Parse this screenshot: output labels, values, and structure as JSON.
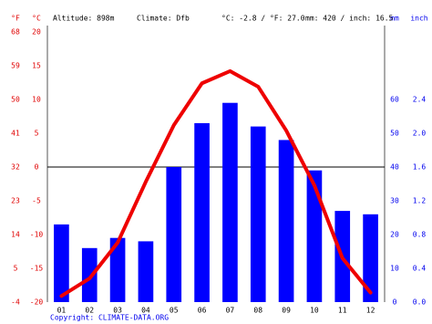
{
  "chart_data": {
    "type": "combo",
    "header": [
      "Altitude: 898m",
      "Climate: Dfb",
      "°C: -2.8 / °F: 27.0",
      "mm: 420 / inch: 16.5"
    ],
    "ylabel_f": "°F",
    "ylabel": "°C",
    "y2label": "mm",
    "y2label_inch": "inch",
    "categories": [
      "01",
      "02",
      "03",
      "04",
      "05",
      "06",
      "07",
      "08",
      "09",
      "10",
      "11",
      "12"
    ],
    "series": [
      {
        "name": "Precipitation",
        "type": "bar",
        "axis": "y2",
        "color": "#0000ff",
        "values": [
          23,
          16,
          19,
          18,
          40,
          53,
          59,
          52,
          48,
          39,
          27,
          26
        ]
      },
      {
        "name": "Temperature",
        "type": "line",
        "color": "#ee0000",
        "values": [
          -19.1,
          -16.5,
          -11.2,
          -2.2,
          6.2,
          12.4,
          14.2,
          11.9,
          5.4,
          -2.7,
          -13.5,
          -18.6
        ]
      }
    ],
    "ylim": [
      -20,
      20
    ],
    "yticks": [
      20,
      15,
      10,
      5,
      0,
      -5,
      -10,
      -15,
      -20
    ],
    "yticks_f": [
      68,
      59,
      50,
      41,
      32,
      23,
      14,
      5,
      -4
    ],
    "y2lim": [
      0,
      80
    ],
    "y2ticks": [
      60,
      50,
      40,
      30,
      20,
      10,
      0
    ],
    "y2ticks_inch": [
      {
        "value": 60,
        "label": "2.4"
      },
      {
        "value": 50,
        "label": "2.0"
      },
      {
        "value": 40,
        "label": "1.6"
      },
      {
        "value": 30,
        "label": "1.2"
      },
      {
        "value": 20,
        "label": "0.8"
      },
      {
        "value": 10,
        "label": "0.4"
      },
      {
        "value": 0,
        "label": "0.0"
      }
    ],
    "copyright": "Copyright: CLIMATE-DATA.ORG"
  }
}
